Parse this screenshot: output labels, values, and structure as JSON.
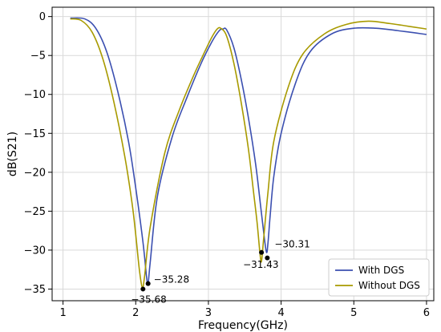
{
  "chart_data": {
    "type": "line",
    "title": "",
    "xlabel": "Frequency(GHz)",
    "ylabel": "dB(S21)",
    "xlim": [
      0.85,
      6.1
    ],
    "ylim": [
      -36.5,
      1.2
    ],
    "xticks": [
      1,
      2,
      3,
      4,
      5,
      6
    ],
    "yticks": [
      0,
      -5,
      -10,
      -15,
      -20,
      -25,
      -30,
      -35
    ],
    "xtick_labels": [
      "1",
      "2",
      "3",
      "4",
      "5",
      "6"
    ],
    "ytick_labels": [
      "0",
      "−5",
      "−10",
      "−15",
      "−20",
      "−25",
      "−30",
      "−35"
    ],
    "grid": true,
    "legend_position": "bottom-right",
    "series": [
      {
        "name": "With DGS",
        "color": "#3b4fb0",
        "x": [
          1.1,
          1.3,
          1.45,
          1.6,
          1.75,
          1.9,
          2.0,
          2.1,
          2.15,
          2.17,
          2.2,
          2.3,
          2.5,
          2.7,
          2.9,
          3.05,
          3.15,
          3.2,
          3.25,
          3.35,
          3.45,
          3.55,
          3.65,
          3.72,
          3.77,
          3.8,
          3.82,
          3.85,
          3.9,
          4.0,
          4.2,
          4.4,
          4.7,
          5.0,
          5.3,
          5.6,
          6.0
        ],
        "y": [
          -0.2,
          -0.3,
          -1.5,
          -4.5,
          -9.5,
          -16,
          -22,
          -29,
          -33.5,
          -34.3,
          -31.5,
          -23,
          -15.5,
          -10.5,
          -6,
          -3.2,
          -1.8,
          -1.6,
          -1.7,
          -4,
          -8,
          -13,
          -19,
          -24.5,
          -28.5,
          -30.31,
          -29,
          -25.5,
          -20.5,
          -15,
          -8.5,
          -4.5,
          -2.2,
          -1.5,
          -1.5,
          -1.8,
          -2.3
        ]
      },
      {
        "name": "Without DGS",
        "color": "#a89a00",
        "x": [
          1.1,
          1.25,
          1.4,
          1.55,
          1.7,
          1.85,
          1.95,
          2.0,
          2.05,
          2.09,
          2.12,
          2.2,
          2.4,
          2.6,
          2.8,
          2.95,
          3.05,
          3.12,
          3.17,
          3.25,
          3.35,
          3.45,
          3.55,
          3.62,
          3.67,
          3.71,
          3.73,
          3.76,
          3.82,
          3.9,
          4.1,
          4.3,
          4.6,
          4.9,
          5.2,
          5.5,
          6.0
        ],
        "y": [
          -0.3,
          -0.5,
          -2,
          -5.5,
          -11,
          -18,
          -24,
          -28,
          -32.5,
          -34.8,
          -33.5,
          -27,
          -17.5,
          -12,
          -7.5,
          -4.5,
          -2.6,
          -1.6,
          -1.5,
          -2.5,
          -6,
          -11,
          -17,
          -22.5,
          -26.5,
          -30.5,
          -31.43,
          -28.5,
          -22.5,
          -16,
          -9,
          -4.8,
          -2.2,
          -1.0,
          -0.6,
          -0.9,
          -1.6
        ]
      }
    ],
    "annotations": [
      {
        "label": "−35.68",
        "x": 2.1,
        "y": -35.0,
        "series": "Without DGS"
      },
      {
        "label": "−35.28",
        "x": 2.17,
        "y": -34.3,
        "series": "With DGS"
      },
      {
        "label": "−31.43",
        "x": 3.73,
        "y": -30.3,
        "series": "Without DGS"
      },
      {
        "label": "−30.31",
        "x": 3.81,
        "y": -31.0,
        "series": "With DGS"
      }
    ]
  }
}
